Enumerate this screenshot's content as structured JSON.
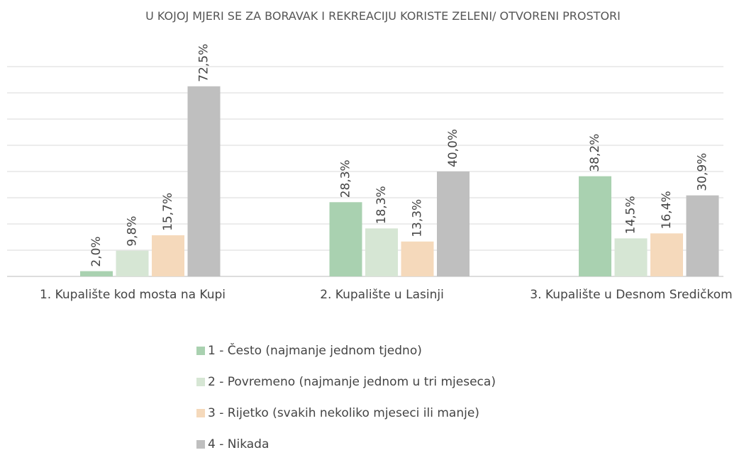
{
  "chart_data": {
    "type": "bar",
    "title": "U KOJOJ MJERI SE ZA BORAVAK I REKREACIJU KORISTE ZELENI/ OTVORENI PROSTORI",
    "categories": [
      "1. Kupalište kod mosta na Kupi",
      "2. Kupalište u Lasinji",
      "3. Kupalište u Desnom Sredičkom"
    ],
    "series": [
      {
        "name": "1 - Često (najmanje jednom tjedno)",
        "color": "#a9d1b0",
        "values": [
          2.0,
          28.3,
          38.2
        ],
        "value_labels": [
          "2,0%",
          "28,3%",
          "38,2%"
        ]
      },
      {
        "name": "2 - Povremeno (najmanje jednom u tri mjeseca)",
        "color": "#d6e6d4",
        "values": [
          9.8,
          18.3,
          14.5
        ],
        "value_labels": [
          "9,8%",
          "18,3%",
          "14,5%"
        ]
      },
      {
        "name": "3 - Rijetko (svakih nekoliko mjeseci ili manje)",
        "color": "#f5d9bb",
        "values": [
          15.7,
          13.3,
          16.4
        ],
        "value_labels": [
          "15,7%",
          "13,3%",
          "16,4%"
        ]
      },
      {
        "name": "4 - Nikada",
        "color": "#bfbfbf",
        "values": [
          72.5,
          40.0,
          30.9
        ],
        "value_labels": [
          "72,5%",
          "40,0%",
          "30,9%"
        ]
      }
    ],
    "ylim": [
      0,
      80
    ],
    "yticks": [
      0,
      10,
      20,
      30,
      40,
      50,
      60,
      70,
      80
    ],
    "grid": true,
    "tick_labels": false
  }
}
